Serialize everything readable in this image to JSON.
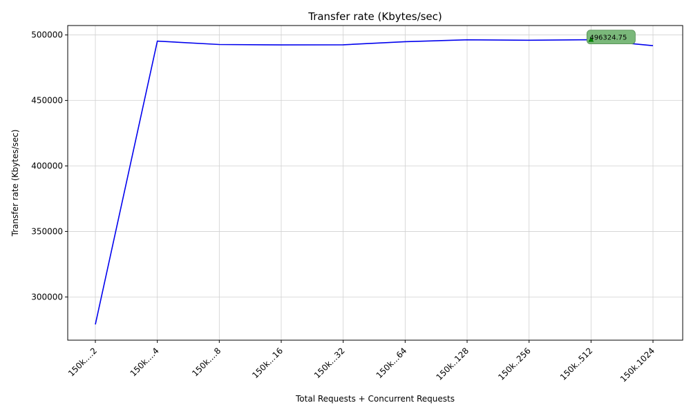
{
  "chart_data": {
    "type": "line",
    "title": "Transfer rate (Kbytes/sec)",
    "xlabel": "Total Requests + Concurrent Requests",
    "ylabel": "Transfer rate (Kbytes/sec)",
    "categories": [
      "150k....2",
      "150k....4",
      "150k....8",
      "150k...16",
      "150k...32",
      "150k...64",
      "150k..128",
      "150k..256",
      "150k..512",
      "150k.1024"
    ],
    "series": [
      {
        "color": "#0000ee",
        "values": [
          279000,
          495300,
          492700,
          492400,
          492500,
          494900,
          496300,
          496000,
          496324.75,
          491800
        ]
      }
    ],
    "ylim": [
      267000,
      507200
    ],
    "yticks": [
      300000,
      350000,
      400000,
      450000,
      500000
    ],
    "grid": true,
    "annotation": {
      "index": 8,
      "text": "496324.75",
      "box_color": "#7ab87a",
      "marker_color": "#008000"
    }
  }
}
